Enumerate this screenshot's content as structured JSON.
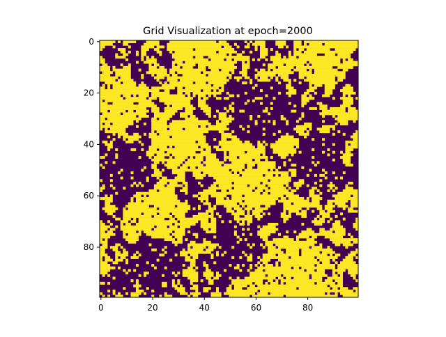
{
  "chart_data": {
    "type": "heatmap",
    "title": "Grid Visualization at epoch=2000",
    "xlabel": "",
    "ylabel": "",
    "rows": 100,
    "cols": 100,
    "value_set": [
      0,
      1
    ],
    "colormap": {
      "0": "#440154",
      "1": "#fde725"
    },
    "x_ticks": [
      0,
      20,
      40,
      60,
      80
    ],
    "y_ticks": [
      0,
      20,
      40,
      60,
      80
    ],
    "grid": false,
    "legend": "none",
    "pattern_seed": 2000,
    "pattern_note_regions": [
      {
        "cx": 40,
        "cy": 8,
        "r": 12,
        "v": 1
      },
      {
        "cx": 85,
        "cy": 5,
        "r": 12,
        "v": 1
      },
      {
        "cx": 5,
        "cy": 25,
        "r": 10,
        "v": 1
      },
      {
        "cx": 55,
        "cy": 55,
        "r": 12,
        "v": 1
      },
      {
        "cx": 72,
        "cy": 90,
        "r": 14,
        "v": 1
      },
      {
        "cx": 60,
        "cy": 95,
        "r": 10,
        "v": 1
      },
      {
        "cx": 20,
        "cy": 70,
        "r": 12,
        "v": 1
      },
      {
        "cx": 30,
        "cy": 40,
        "r": 10,
        "v": 1
      },
      {
        "cx": 62,
        "cy": 28,
        "r": 12,
        "v": 0
      },
      {
        "cx": 10,
        "cy": 50,
        "r": 10,
        "v": 0
      },
      {
        "cx": 55,
        "cy": 82,
        "r": 10,
        "v": 0
      },
      {
        "cx": 85,
        "cy": 45,
        "r": 10,
        "v": 0
      },
      {
        "cx": 20,
        "cy": 85,
        "r": 10,
        "v": 0
      }
    ]
  }
}
